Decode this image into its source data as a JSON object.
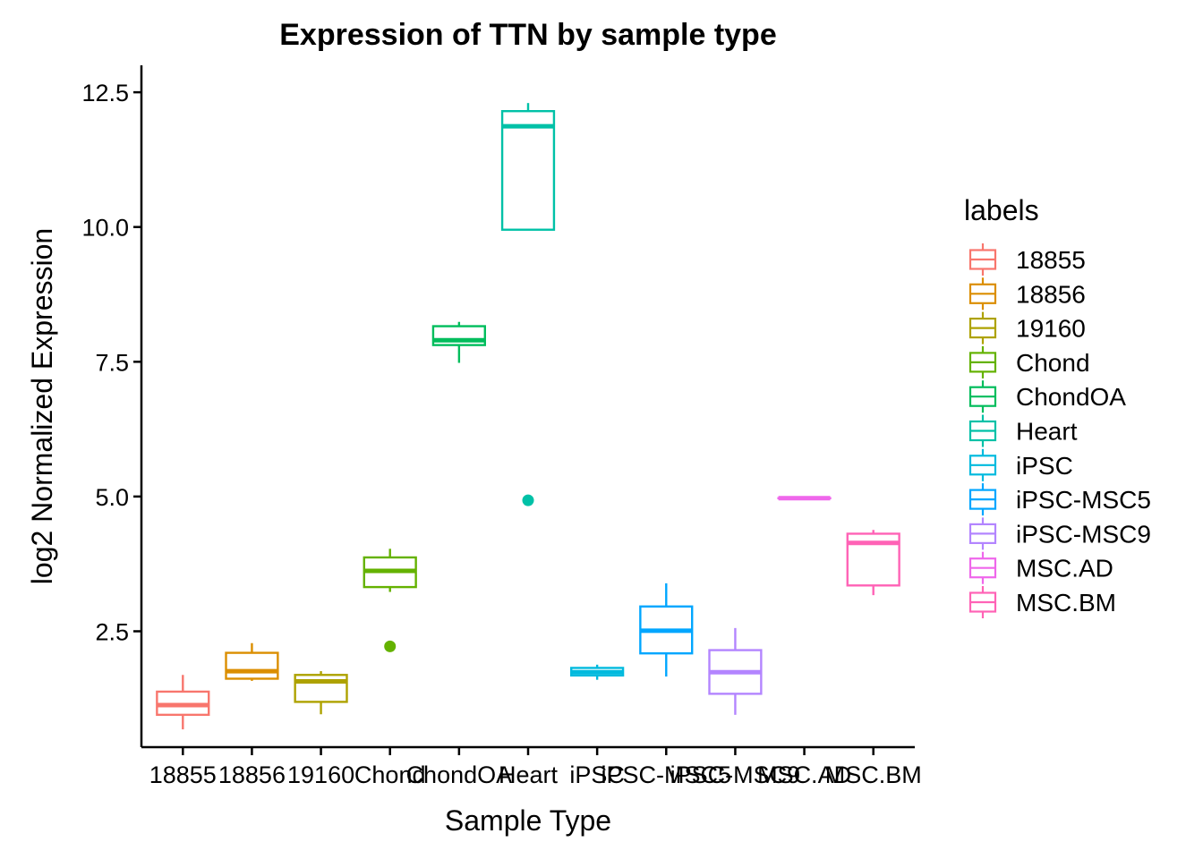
{
  "chart_data": {
    "type": "boxplot",
    "title": "Expression of TTN by sample type",
    "xlabel": "Sample Type",
    "ylabel": "log2 Normalized Expression",
    "ylim": [
      0.35,
      13.0
    ],
    "yticks": [
      2.5,
      5.0,
      7.5,
      10.0,
      12.5
    ],
    "ytick_labels": [
      "2.5",
      "5.0",
      "7.5",
      "10.0",
      "12.5"
    ],
    "grid": false,
    "legend": {
      "title": "labels",
      "position": "right"
    },
    "categories": [
      "18855",
      "18856",
      "19160",
      "Chond",
      "ChondOA",
      "Heart",
      "iPSC",
      "iPSC-MSC5",
      "iPSC-MSC9",
      "MSC.AD",
      "MSC.BM"
    ],
    "colors": [
      "#F8766D",
      "#DB8E00",
      "#AEA200",
      "#64B200",
      "#00BD5C",
      "#00C1A7",
      "#00BADE",
      "#00A6FF",
      "#B385FF",
      "#EF67EB",
      "#FF63B6"
    ],
    "boxes": [
      {
        "label": "18855",
        "whisker_low": 0.68,
        "q1": 0.95,
        "median": 1.13,
        "q3": 1.38,
        "whisker_high": 1.69,
        "outliers": []
      },
      {
        "label": "18856",
        "whisker_low": 1.58,
        "q1": 1.62,
        "median": 1.76,
        "q3": 2.1,
        "whisker_high": 2.28,
        "outliers": []
      },
      {
        "label": "19160",
        "whisker_low": 0.96,
        "q1": 1.19,
        "median": 1.57,
        "q3": 1.69,
        "whisker_high": 1.76,
        "outliers": []
      },
      {
        "label": "Chond",
        "whisker_low": 3.23,
        "q1": 3.32,
        "median": 3.62,
        "q3": 3.87,
        "whisker_high": 4.03,
        "outliers": [
          2.22
        ]
      },
      {
        "label": "ChondOA",
        "whisker_low": 7.48,
        "q1": 7.81,
        "median": 7.9,
        "q3": 8.16,
        "whisker_high": 8.24,
        "outliers": []
      },
      {
        "label": "Heart",
        "whisker_low": 9.95,
        "q1": 9.95,
        "median": 11.87,
        "q3": 12.15,
        "whisker_high": 12.3,
        "outliers": [
          4.93
        ]
      },
      {
        "label": "iPSC",
        "whisker_low": 1.6,
        "q1": 1.68,
        "median": 1.74,
        "q3": 1.82,
        "whisker_high": 1.88,
        "outliers": []
      },
      {
        "label": "iPSC-MSC5",
        "whisker_low": 1.66,
        "q1": 2.09,
        "median": 2.51,
        "q3": 2.96,
        "whisker_high": 3.39,
        "outliers": []
      },
      {
        "label": "iPSC-MSC9",
        "whisker_low": 0.95,
        "q1": 1.34,
        "median": 1.74,
        "q3": 2.15,
        "whisker_high": 2.56,
        "outliers": []
      },
      {
        "label": "MSC.AD",
        "whisker_low": 4.97,
        "q1": 4.97,
        "median": 4.97,
        "q3": 4.97,
        "whisker_high": 4.97,
        "outliers": []
      },
      {
        "label": "MSC.BM",
        "whisker_low": 3.17,
        "q1": 3.35,
        "median": 4.14,
        "q3": 4.31,
        "whisker_high": 4.38,
        "outliers": []
      }
    ]
  }
}
